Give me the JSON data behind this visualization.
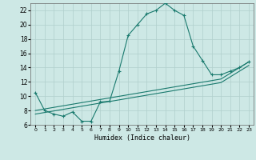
{
  "xlabel": "Humidex (Indice chaleur)",
  "x": [
    0,
    1,
    2,
    3,
    4,
    5,
    6,
    7,
    8,
    9,
    10,
    11,
    12,
    13,
    14,
    15,
    16,
    17,
    18,
    19,
    20,
    21,
    22,
    23
  ],
  "y_curve": [
    10.5,
    8.0,
    7.5,
    7.2,
    7.8,
    6.5,
    6.5,
    9.2,
    9.3,
    13.5,
    18.5,
    20.0,
    21.5,
    22.0,
    23.0,
    22.0,
    21.3,
    17.0,
    15.0,
    13.0,
    13.0,
    13.5,
    14.0,
    14.8
  ],
  "y_line1": [
    8.0,
    8.22,
    8.44,
    8.66,
    8.88,
    9.1,
    9.32,
    9.54,
    9.76,
    9.98,
    10.2,
    10.42,
    10.64,
    10.86,
    11.08,
    11.3,
    11.52,
    11.74,
    11.96,
    12.18,
    12.4,
    13.2,
    14.0,
    14.8
  ],
  "y_line2": [
    7.5,
    7.72,
    7.94,
    8.16,
    8.38,
    8.6,
    8.82,
    9.04,
    9.26,
    9.48,
    9.7,
    9.92,
    10.14,
    10.36,
    10.58,
    10.8,
    11.02,
    11.24,
    11.46,
    11.68,
    11.9,
    12.7,
    13.5,
    14.3
  ],
  "line_color": "#1a7a6e",
  "bg_color": "#cde8e5",
  "grid_color": "#b0cfcc",
  "ylim": [
    6,
    23
  ],
  "yticks": [
    6,
    8,
    10,
    12,
    14,
    16,
    18,
    20,
    22
  ],
  "xlim": [
    -0.5,
    23.5
  ]
}
